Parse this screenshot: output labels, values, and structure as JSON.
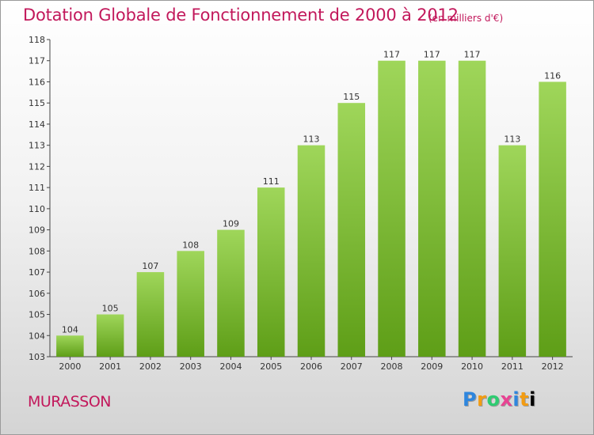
{
  "chart_data": {
    "type": "bar",
    "title": "Dotation Globale de Fonctionnement de 2000 à 2012",
    "subtitle": "(en milliers d'€)",
    "categories": [
      "2000",
      "2001",
      "2002",
      "2003",
      "2004",
      "2005",
      "2006",
      "2007",
      "2008",
      "2009",
      "2010",
      "2011",
      "2012"
    ],
    "values": [
      104,
      105,
      107,
      108,
      109,
      111,
      113,
      115,
      117,
      117,
      117,
      113,
      116
    ],
    "ylim": [
      103,
      118
    ],
    "yticks": [
      103,
      104,
      105,
      106,
      107,
      108,
      109,
      110,
      111,
      112,
      113,
      114,
      115,
      116,
      117,
      118
    ],
    "xlabel": "",
    "ylabel": "",
    "grid": false,
    "bar_color": "#7cc242"
  },
  "footer": {
    "commune": "MURASSON",
    "logo": [
      "P",
      "r",
      "o",
      "x",
      "i",
      "t",
      "i"
    ]
  }
}
